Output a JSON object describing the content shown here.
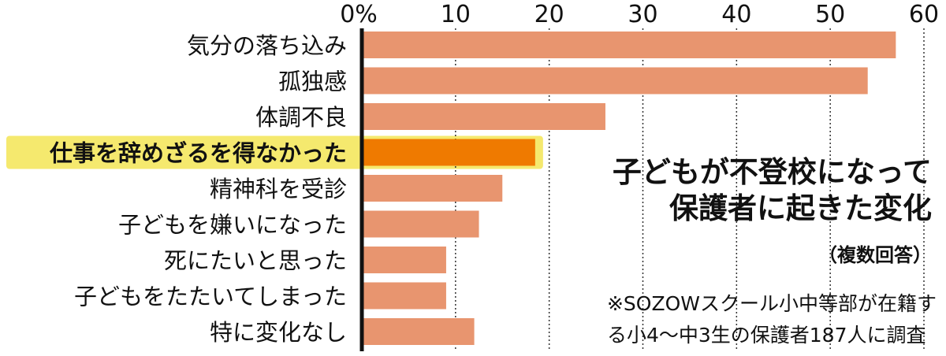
{
  "chart_data": {
    "type": "bar",
    "orientation": "horizontal",
    "title_lines": [
      "子どもが不登校になって",
      "保護者に起きた変化"
    ],
    "subtitle": "（複数回答）",
    "xlim": [
      0,
      60
    ],
    "x_ticks": [
      "0%",
      "10",
      "20",
      "30",
      "40",
      "50",
      "60"
    ],
    "categories": [
      "気分の落ち込み",
      "孤独感",
      "体調不良",
      "仕事を辞めざるを得なかった",
      "精神科を受診",
      "子どもを嫌いになった",
      "死にたいと思った",
      "子どもをたたいてしまった",
      "特に変化なし"
    ],
    "values": [
      57,
      54,
      26,
      18.5,
      15,
      12.5,
      9,
      9,
      12
    ],
    "highlighted_index": 3,
    "grid": "vertical dotted",
    "footnote_lines": [
      "※SOZOWスクール小中等部が在籍す",
      "る小4～中3生の保護者187人に調査"
    ]
  },
  "colors": {
    "bar": "#e8956f",
    "bar_highlight": "#ef7a00",
    "highlight_background": "#f5e96e",
    "axis": "#111111",
    "grid": "#333333"
  }
}
